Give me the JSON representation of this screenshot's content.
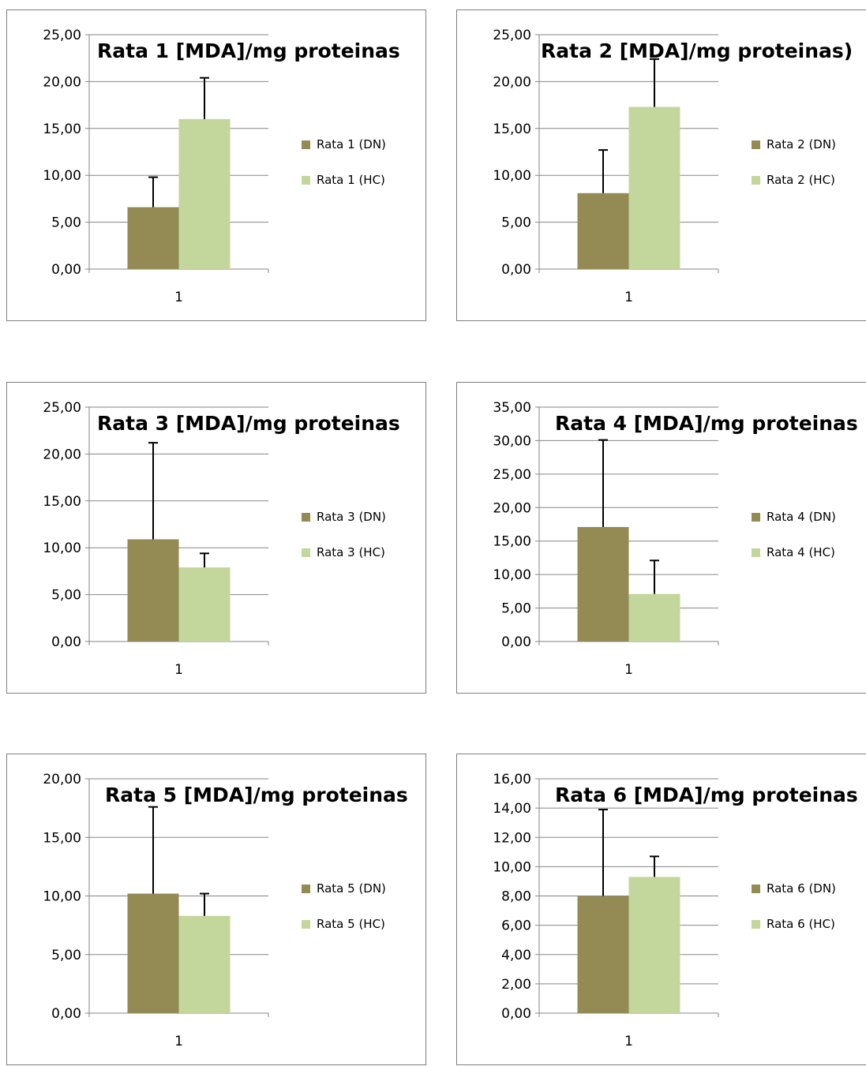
{
  "chart_data": [
    {
      "type": "bar",
      "title": "Rata 1 [MDA]/mg proteinas",
      "categories": [
        "1"
      ],
      "ylim": [
        0,
        25
      ],
      "yticks": [
        "0,00",
        "5,00",
        "10,00",
        "15,00",
        "20,00",
        "25,00"
      ],
      "grid": true,
      "legend": "right",
      "series": [
        {
          "name": "Rata 1 (DN)",
          "values": [
            6.6
          ],
          "error": [
            3.2
          ],
          "color": "#948a54"
        },
        {
          "name": "Rata 1 (HC)",
          "values": [
            16.0
          ],
          "error": [
            4.4
          ],
          "color": "#c3d69b"
        }
      ]
    },
    {
      "type": "bar",
      "title": "Rata 2 [MDA]/mg proteinas)",
      "categories": [
        "1"
      ],
      "ylim": [
        0,
        25
      ],
      "yticks": [
        "0,00",
        "5,00",
        "10,00",
        "15,00",
        "20,00",
        "25,00"
      ],
      "grid": true,
      "legend": "right",
      "series": [
        {
          "name": "Rata 2 (DN)",
          "values": [
            8.1
          ],
          "error": [
            4.6
          ],
          "color": "#948a54"
        },
        {
          "name": "Rata 2 (HC)",
          "values": [
            17.3
          ],
          "error": [
            5.1
          ],
          "color": "#c3d69b"
        }
      ]
    },
    {
      "type": "bar",
      "title": "Rata 3 [MDA]/mg proteinas",
      "categories": [
        "1"
      ],
      "ylim": [
        0,
        25
      ],
      "yticks": [
        "0,00",
        "5,00",
        "10,00",
        "15,00",
        "20,00",
        "25,00"
      ],
      "grid": true,
      "legend": "right",
      "series": [
        {
          "name": "Rata 3 (DN)",
          "values": [
            10.9
          ],
          "error": [
            10.3
          ],
          "color": "#948a54"
        },
        {
          "name": "Rata 3 (HC)",
          "values": [
            7.9
          ],
          "error": [
            1.5
          ],
          "color": "#c3d69b"
        }
      ]
    },
    {
      "type": "bar",
      "title": "Rata 4 [MDA]/mg proteinas",
      "categories": [
        "1"
      ],
      "ylim": [
        0,
        35
      ],
      "yticks": [
        "0,00",
        "5,00",
        "10,00",
        "15,00",
        "20,00",
        "25,00",
        "30,00",
        "35,00"
      ],
      "grid": true,
      "legend": "right",
      "series": [
        {
          "name": "Rata 4 (DN)",
          "values": [
            17.1
          ],
          "error": [
            13.0
          ],
          "color": "#948a54"
        },
        {
          "name": "Rata 4 (HC)",
          "values": [
            7.1
          ],
          "error": [
            5.0
          ],
          "color": "#c3d69b"
        }
      ]
    },
    {
      "type": "bar",
      "title": "Rata 5 [MDA]/mg proteinas",
      "categories": [
        "1"
      ],
      "ylim": [
        0,
        20
      ],
      "yticks": [
        "0,00",
        "5,00",
        "10,00",
        "15,00",
        "20,00"
      ],
      "grid": true,
      "legend": "right",
      "series": [
        {
          "name": "Rata 5 (DN)",
          "values": [
            10.2
          ],
          "error": [
            7.4
          ],
          "color": "#948a54"
        },
        {
          "name": "Rata 5 (HC)",
          "values": [
            8.3
          ],
          "error": [
            1.9
          ],
          "color": "#c3d69b"
        }
      ]
    },
    {
      "type": "bar",
      "title": "Rata 6 [MDA]/mg proteinas",
      "categories": [
        "1"
      ],
      "ylim": [
        0,
        16
      ],
      "yticks": [
        "0,00",
        "2,00",
        "4,00",
        "6,00",
        "8,00",
        "10,00",
        "12,00",
        "14,00",
        "16,00"
      ],
      "grid": true,
      "legend": "right",
      "series": [
        {
          "name": "Rata 6 (DN)",
          "values": [
            8.0
          ],
          "error": [
            5.9
          ],
          "color": "#948a54"
        },
        {
          "name": "Rata 6 (HC)",
          "values": [
            9.3
          ],
          "error": [
            1.4
          ],
          "color": "#c3d69b"
        }
      ]
    }
  ]
}
